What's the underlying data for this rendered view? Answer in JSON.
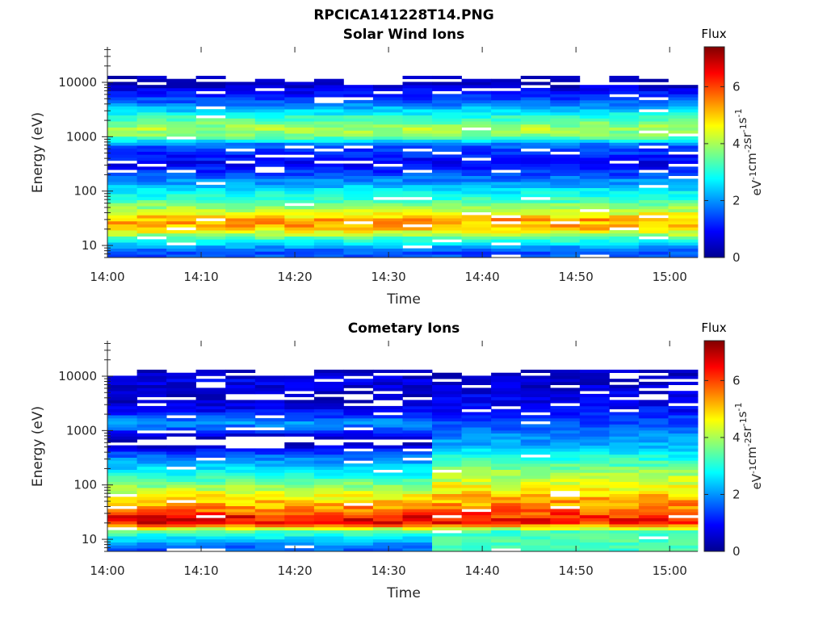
{
  "figure_title": "RPCICA141228T14.PNG",
  "chart_data": [
    {
      "type": "heatmap",
      "title": "Solar Wind Ions",
      "xlabel": "Time",
      "ylabel": "Energy (eV)",
      "x_ticks": [
        "14:00",
        "14:10",
        "14:20",
        "14:30",
        "14:40",
        "14:50",
        "15:00"
      ],
      "x_range_minutes": [
        0,
        63
      ],
      "y_ticks": [
        "10",
        "100",
        "1000",
        "10000"
      ],
      "y_range": [
        6,
        45000
      ],
      "y_scale": "log",
      "colorbar": {
        "title": "Flux",
        "label": "eV-1cm-2sr-1s-1",
        "range": [
          0,
          7.4
        ],
        "ticks": [
          "0",
          "2",
          "4",
          "6"
        ],
        "colormap": "jet"
      },
      "time_start_minutes": 0,
      "time_step_minutes": 3.15,
      "time_bins": 20,
      "profiles": [
        {
          "from_bin": 0,
          "to_bin": 19,
          "log10_energy": [
            0.9,
            1.12,
            1.33,
            1.48,
            1.6,
            1.85,
            2.05,
            2.2,
            2.35,
            2.5,
            2.85,
            3.0,
            3.15,
            3.3,
            3.5,
            3.65,
            3.8,
            3.93,
            4.0
          ],
          "flux": [
            1.5,
            3.2,
            5.2,
            5.3,
            4.4,
            3.2,
            2.5,
            1.9,
            1.3,
            0.8,
            1.6,
            3.6,
            4.0,
            3.4,
            2.4,
            1.6,
            1.0,
            0.6,
            0.3
          ]
        }
      ],
      "log_energy_range": [
        0.78,
        4.12
      ],
      "variation": 0.35,
      "seed": 17
    },
    {
      "type": "heatmap",
      "title": "Cometary Ions",
      "xlabel": "Time",
      "ylabel": "Energy (eV)",
      "x_ticks": [
        "14:00",
        "14:10",
        "14:20",
        "14:30",
        "14:40",
        "14:50",
        "15:00"
      ],
      "x_range_minutes": [
        0,
        63
      ],
      "y_ticks": [
        "10",
        "100",
        "1000",
        "10000"
      ],
      "y_range": [
        6,
        45000
      ],
      "y_scale": "log",
      "colorbar": {
        "title": "Flux",
        "label": "eV-1cm-2sr-1s-1",
        "range": [
          0,
          7.4
        ],
        "ticks": [
          "0",
          "2",
          "4",
          "6"
        ],
        "colormap": "jet"
      },
      "time_start_minutes": 0,
      "time_step_minutes": 3.15,
      "time_bins": 20,
      "profiles": [
        {
          "from_bin": 0,
          "to_bin": 10,
          "log10_energy": [
            0.85,
            1.15,
            1.3,
            1.42,
            1.55,
            1.75,
            1.95,
            2.15,
            2.35,
            2.55,
            2.8,
            3.0,
            3.15,
            3.3,
            3.6,
            3.85,
            3.95,
            4.0
          ],
          "flux": [
            1.6,
            3.4,
            6.6,
            6.4,
            5.5,
            4.8,
            4.0,
            3.1,
            2.4,
            1.6,
            0.0,
            1.3,
            2.1,
            1.2,
            0.3,
            0.7,
            0.9,
            0.4
          ]
        },
        {
          "from_bin": 11,
          "to_bin": 19,
          "log10_energy": [
            1.15,
            1.3,
            1.42,
            1.55,
            1.75,
            1.95,
            2.15,
            2.35,
            2.55,
            2.75,
            2.95,
            3.15,
            3.35,
            3.6,
            3.85,
            4.0
          ],
          "flux": [
            3.3,
            6.3,
            6.2,
            5.6,
            5.1,
            4.6,
            4.1,
            3.5,
            2.8,
            2.2,
            1.8,
            1.4,
            1.0,
            0.8,
            0.6,
            0.4
          ]
        }
      ],
      "log_energy_range": [
        0.78,
        4.12
      ],
      "variation": 0.35,
      "seed": 29
    }
  ]
}
